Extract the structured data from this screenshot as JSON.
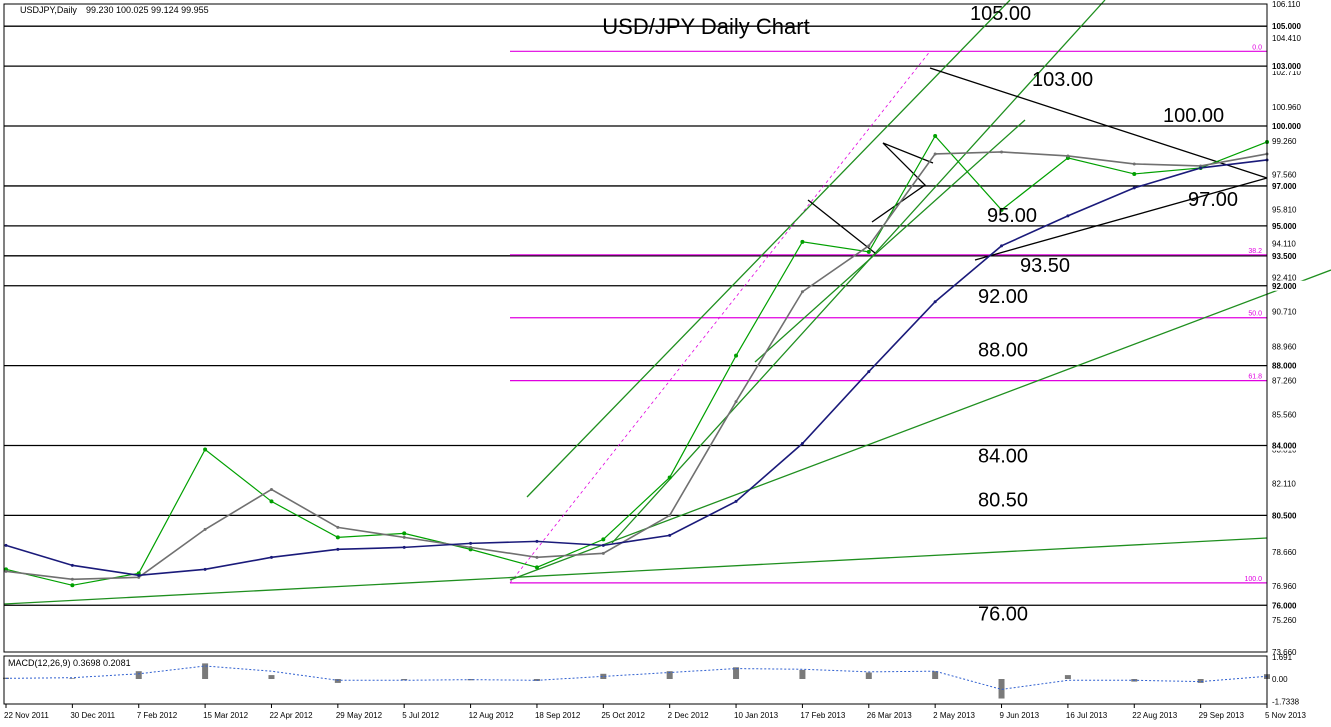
{
  "header": {
    "symbol_label": "USDJPY,Daily",
    "ohlc": "99.230 100.025 99.124 99.955"
  },
  "chart_data": [
    {
      "type": "line",
      "title": "USD/JPY Daily Chart",
      "subtitle": "",
      "xlabel": "",
      "ylabel": "",
      "ylim": [
        73.66,
        106.11
      ],
      "x_ticks": [
        "22 Nov 2011",
        "30 Dec 2011",
        "7 Feb 2012",
        "15 Mar 2012",
        "22 Apr 2012",
        "29 May 2012",
        "5 Jul 2012",
        "12 Aug 2012",
        "18 Sep 2012",
        "25 Oct 2012",
        "2 Dec 2012",
        "10 Jan 2013",
        "17 Feb 2013",
        "26 Mar 2013",
        "2 May 2013",
        "9 Jun 2013",
        "16 Jul 2013",
        "22 Aug 2013",
        "29 Sep 2013",
        "5 Nov 2013"
      ],
      "y_ticks": [
        106.11,
        104.41,
        102.71,
        100.96,
        99.26,
        97.56,
        95.81,
        94.11,
        92.41,
        90.71,
        88.96,
        87.26,
        85.56,
        83.81,
        82.11,
        80.41,
        78.66,
        76.96,
        75.26,
        73.66
      ],
      "price_levels": [
        {
          "value": 105.0,
          "label": "105.00",
          "axis_label": "105.000"
        },
        {
          "value": 103.0,
          "label": "103.00",
          "axis_label": "103.000"
        },
        {
          "value": 100.0,
          "label": "100.00",
          "axis_label": "100.000"
        },
        {
          "value": 97.0,
          "label": "97.00",
          "axis_label": "97.000"
        },
        {
          "value": 95.0,
          "label": "95.00",
          "axis_label": "95.000"
        },
        {
          "value": 93.5,
          "label": "93.50",
          "axis_label": "93.500"
        },
        {
          "value": 92.0,
          "label": "92.00",
          "axis_label": "92.000"
        },
        {
          "value": 88.0,
          "label": "88.00",
          "axis_label": "88.000"
        },
        {
          "value": 84.0,
          "label": "84.00",
          "axis_label": "84.000"
        },
        {
          "value": 80.5,
          "label": "80.50",
          "axis_label": "80.500"
        },
        {
          "value": 76.0,
          "label": "76.00",
          "axis_label": "76.000"
        }
      ],
      "fibonacci_levels": [
        {
          "label": "0.0",
          "value": 103.74
        },
        {
          "label": "38.2",
          "value": 93.55
        },
        {
          "label": "50.0",
          "value": 90.4
        },
        {
          "label": "61.8",
          "value": 87.25
        },
        {
          "label": "100.0",
          "value": 77.12
        }
      ],
      "current_price": 99.955,
      "series": [
        {
          "name": "",
          "color": "#00a000",
          "role": "price",
          "x": [
            "22 Nov 2011",
            "30 Dec 2011",
            "7 Feb 2012",
            "15 Mar 2012",
            "22 Apr 2012",
            "29 May 2012",
            "5 Jul 2012",
            "12 Aug 2012",
            "18 Sep 2012",
            "25 Oct 2012",
            "2 Dec 2012",
            "10 Jan 2013",
            "17 Feb 2013",
            "26 Mar 2013",
            "2 May 2013",
            "9 Jun 2013",
            "16 Jul 2013",
            "22 Aug 2013",
            "29 Sep 2013",
            "5 Nov 2013"
          ],
          "y": [
            77.8,
            77.0,
            77.6,
            83.8,
            81.2,
            79.4,
            79.6,
            78.8,
            77.9,
            79.3,
            82.4,
            88.5,
            94.2,
            93.7,
            99.5,
            95.8,
            98.4,
            97.6,
            97.9,
            99.2
          ]
        },
        {
          "name": "",
          "color": "#707070",
          "role": "moving-average",
          "x": [
            "22 Nov 2011",
            "30 Dec 2011",
            "7 Feb 2012",
            "15 Mar 2012",
            "22 Apr 2012",
            "29 May 2012",
            "5 Jul 2012",
            "12 Aug 2012",
            "18 Sep 2012",
            "25 Oct 2012",
            "2 Dec 2012",
            "10 Jan 2013",
            "17 Feb 2013",
            "26 Mar 2013",
            "2 May 2013",
            "9 Jun 2013",
            "16 Jul 2013",
            "22 Aug 2013",
            "29 Sep 2013",
            "5 Nov 2013"
          ],
          "y": [
            77.7,
            77.3,
            77.4,
            79.8,
            81.8,
            79.9,
            79.4,
            78.9,
            78.4,
            78.6,
            80.5,
            86.2,
            91.7,
            94.0,
            98.6,
            98.7,
            98.5,
            98.1,
            98.0,
            98.6
          ]
        },
        {
          "name": "",
          "color": "#1a1a7a",
          "role": "moving-average",
          "x": [
            "22 Nov 2011",
            "30 Dec 2011",
            "7 Feb 2012",
            "15 Mar 2012",
            "22 Apr 2012",
            "29 May 2012",
            "5 Jul 2012",
            "12 Aug 2012",
            "18 Sep 2012",
            "25 Oct 2012",
            "2 Dec 2012",
            "10 Jan 2013",
            "17 Feb 2013",
            "26 Mar 2013",
            "2 May 2013",
            "9 Jun 2013",
            "16 Jul 2013",
            "22 Aug 2013",
            "29 Sep 2013",
            "5 Nov 2013"
          ],
          "y": [
            79.0,
            78.0,
            77.5,
            77.8,
            78.4,
            78.8,
            78.9,
            79.1,
            79.2,
            79.0,
            79.5,
            81.2,
            84.1,
            87.7,
            91.2,
            94.0,
            95.5,
            96.9,
            97.9,
            98.3
          ]
        }
      ]
    },
    {
      "type": "bar",
      "title": "",
      "label": "MACD(12,26,9) 0.3698 0.2081",
      "xlabel": "",
      "ylabel": "",
      "ylim": [
        -1.7338,
        1.691
      ],
      "y_ticks": [
        1.691,
        0.0,
        -1.7338
      ],
      "series": [
        {
          "name": "",
          "color": "#7a7a7a",
          "role": "histogram",
          "x": [
            "22 Nov 2011",
            "30 Dec 2011",
            "7 Feb 2012",
            "15 Mar 2012",
            "22 Apr 2012",
            "29 May 2012",
            "5 Jul 2012",
            "12 Aug 2012",
            "18 Sep 2012",
            "25 Oct 2012",
            "2 Dec 2012",
            "10 Jan 2013",
            "17 Feb 2013",
            "26 Mar 2013",
            "2 May 2013",
            "9 Jun 2013",
            "16 Jul 2013",
            "22 Aug 2013",
            "29 Sep 2013",
            "5 Nov 2013"
          ],
          "y": [
            0.1,
            0.05,
            0.6,
            1.2,
            0.3,
            -0.3,
            -0.1,
            -0.1,
            -0.15,
            0.4,
            0.6,
            0.9,
            0.7,
            0.5,
            0.6,
            -1.5,
            0.3,
            -0.2,
            -0.3,
            0.37
          ]
        },
        {
          "name": "",
          "color": "#3060d0",
          "role": "signal",
          "x": [
            "22 Nov 2011",
            "30 Dec 2011",
            "7 Feb 2012",
            "15 Mar 2012",
            "22 Apr 2012",
            "29 May 2012",
            "5 Jul 2012",
            "12 Aug 2012",
            "18 Sep 2012",
            "25 Oct 2012",
            "2 Dec 2012",
            "10 Jan 2013",
            "17 Feb 2013",
            "26 Mar 2013",
            "2 May 2013",
            "9 Jun 2013",
            "16 Jul 2013",
            "22 Aug 2013",
            "29 Sep 2013",
            "5 Nov 2013"
          ],
          "y": [
            0.05,
            0.1,
            0.4,
            1.0,
            0.6,
            -0.1,
            -0.1,
            -0.05,
            -0.1,
            0.2,
            0.5,
            0.8,
            0.75,
            0.55,
            0.6,
            -0.8,
            -0.1,
            -0.1,
            -0.2,
            0.21
          ]
        }
      ]
    }
  ],
  "colors": {
    "price": "#00a000",
    "fast_ma": "#707070",
    "slow_ma": "#1a1a7a",
    "level_line": "#000000",
    "fib_line": "#e000e0",
    "channel": "#1f8f1f",
    "background": "#ffffff"
  }
}
